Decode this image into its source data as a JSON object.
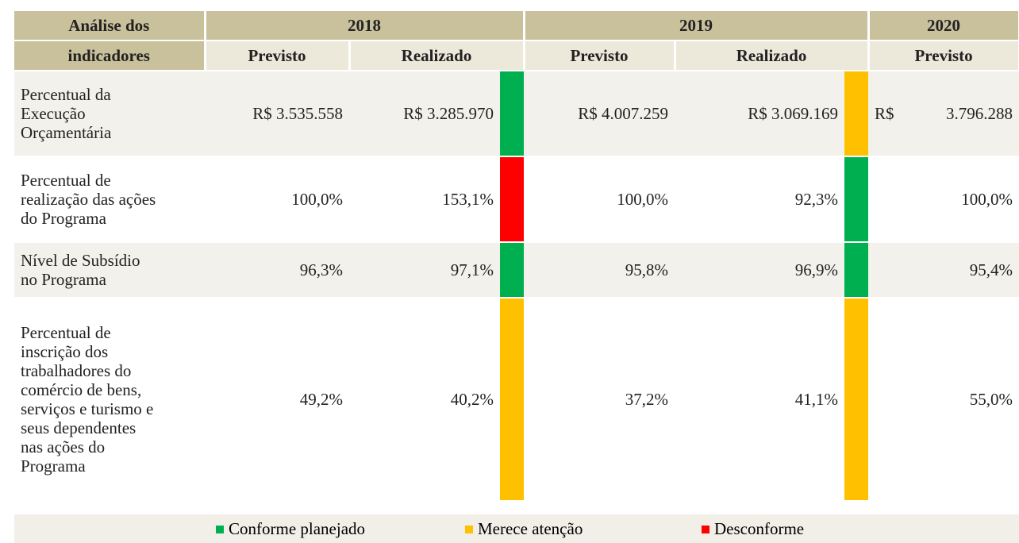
{
  "header": {
    "corner": [
      "Análise dos",
      "indicadores"
    ],
    "years": [
      "2018",
      "2019",
      "2020"
    ],
    "subheaders": [
      "Previsto",
      "Realizado",
      "Previsto",
      "Realizado",
      "Previsto"
    ]
  },
  "rows": [
    {
      "label": [
        "Percentual da",
        "Execução",
        "Orçamentária"
      ],
      "cells": [
        "R$ 3.535.558",
        "R$ 3.285.970",
        "R$ 4.007.259",
        "R$ 3.069.169",
        [
          "R$",
          "3.796.288"
        ]
      ],
      "status": [
        "#00b050",
        "#ffc000"
      ]
    },
    {
      "label": [
        "Percentual de",
        "realização das ações",
        "do Programa"
      ],
      "cells": [
        "100,0%",
        "153,1%",
        "100,0%",
        "92,3%",
        "100,0%"
      ],
      "status": [
        "#ff0000",
        "#00b050"
      ]
    },
    {
      "label": [
        "Nível de Subsídio",
        "no Programa"
      ],
      "cells": [
        "96,3%",
        "97,1%",
        "95,8%",
        "96,9%",
        "95,4%"
      ],
      "status": [
        "#00b050",
        "#00b050"
      ]
    },
    {
      "label": [
        "Percentual de",
        "inscrição dos",
        "trabalhadores do",
        "comércio de bens,",
        "serviços e turismo e",
        "seus dependentes",
        "nas ações do",
        "Programa"
      ],
      "cells": [
        "49,2%",
        "40,2%",
        "37,2%",
        "41,1%",
        "55,0%"
      ],
      "status": [
        "#ffc000",
        "#ffc000"
      ]
    }
  ],
  "legend": [
    {
      "label": "Conforme planejado",
      "color": "#00b050"
    },
    {
      "label": "Merece atenção",
      "color": "#ffc000"
    },
    {
      "label": "Desconforme",
      "color": "#ff0000"
    }
  ]
}
